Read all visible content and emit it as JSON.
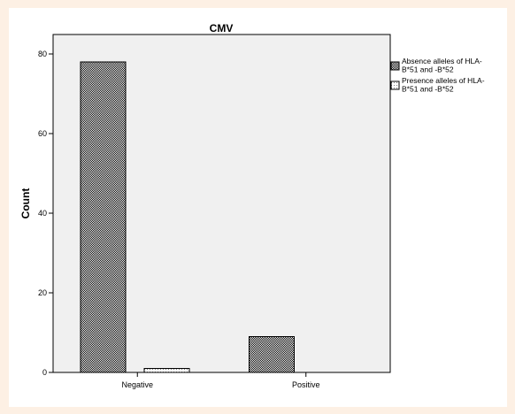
{
  "chart_data": {
    "type": "bar",
    "title": "CMV",
    "xlabel": "",
    "ylabel": "Count",
    "categories": [
      "Negative",
      "Positive"
    ],
    "series": [
      {
        "name": "Absence alleles of HLA-B*51 and -B*52",
        "legend_lines": [
          "Absence alleles of HLA-",
          "B*51 and -B*52"
        ],
        "values": [
          78,
          9
        ],
        "pattern": "dense-checker"
      },
      {
        "name": "Presence alleles of HLA-B*51 and -B*52",
        "legend_lines": [
          "Presence alleles of HLA-",
          "B*51 and -B*52"
        ],
        "values": [
          1,
          0
        ],
        "pattern": "light-dots"
      }
    ],
    "ylim": [
      0,
      85
    ],
    "yticks": [
      0,
      20,
      40,
      60,
      80
    ],
    "grid": false,
    "legend_position": "right",
    "colors": {
      "plot_background": "#f0f0f0",
      "bar_edge": "#000000",
      "page_background": "#fdf0e4"
    }
  }
}
